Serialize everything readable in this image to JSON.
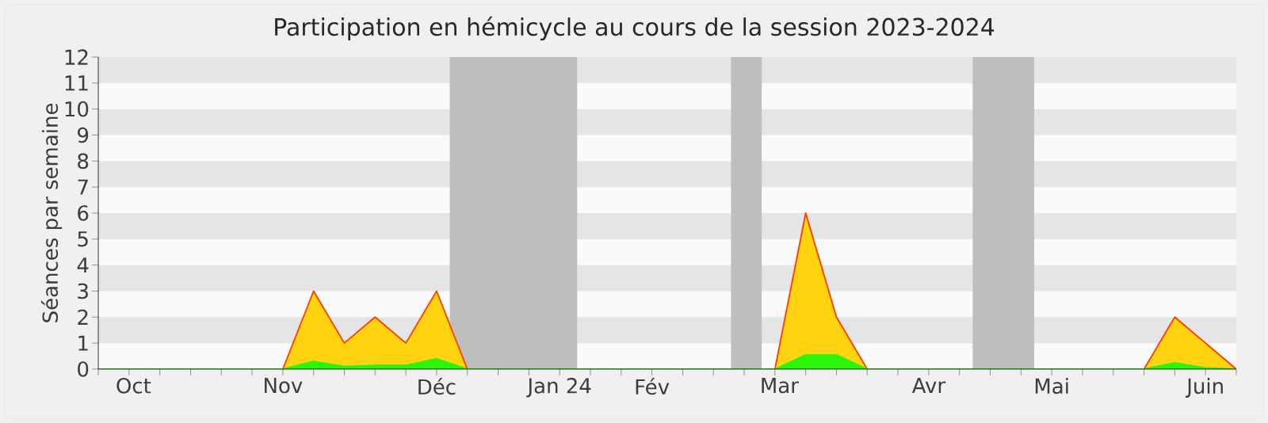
{
  "chart_data": {
    "type": "area",
    "title": "Participation en hémicycle au cours de la session 2023-2024",
    "ylabel": "Séances par semaine",
    "x": [
      "2023-09-28",
      "2023-10-05",
      "2023-10-12",
      "2023-10-19",
      "2023-10-26",
      "2023-11-02",
      "2023-11-09",
      "2023-11-16",
      "2023-11-23",
      "2023-11-30",
      "2023-12-07",
      "2023-12-14",
      "2023-12-21",
      "2023-12-28",
      "2024-01-04",
      "2024-01-11",
      "2024-01-18",
      "2024-01-25",
      "2024-02-01",
      "2024-02-08",
      "2024-02-15",
      "2024-02-22",
      "2024-02-29",
      "2024-03-07",
      "2024-03-14",
      "2024-03-21",
      "2024-03-28",
      "2024-04-04",
      "2024-04-11",
      "2024-04-18",
      "2024-04-25",
      "2024-05-02",
      "2024-05-09",
      "2024-05-16",
      "2024-05-23",
      "2024-05-30",
      "2024-06-06",
      "2024-06-13"
    ],
    "series": [
      {
        "color": "#ffd30f",
        "values": [
          0,
          0,
          0,
          0,
          0,
          0,
          0,
          3,
          1,
          2,
          1,
          3,
          0,
          0,
          0,
          0,
          0,
          0,
          0,
          0,
          0,
          0,
          0,
          6,
          2,
          0,
          0,
          0,
          0,
          0,
          0,
          0,
          0,
          0,
          0,
          2,
          1,
          0
        ]
      },
      {
        "color": "#2bf50a",
        "values": [
          0,
          0,
          0,
          0,
          0,
          0,
          0,
          0.3,
          0.1,
          0.15,
          0.15,
          0.4,
          0,
          0,
          0,
          0,
          0,
          0,
          0,
          0,
          0,
          0,
          0,
          0.55,
          0.55,
          0,
          0,
          0,
          0,
          0,
          0,
          0,
          0,
          0,
          0,
          0.25,
          0.05,
          0
        ]
      }
    ],
    "xlim": [
      "2023-09-28",
      "2024-06-13"
    ],
    "xticks": [
      {
        "value": "2023-10-06",
        "label": "Oct"
      },
      {
        "value": "2023-11-09",
        "label": "Nov"
      },
      {
        "value": "2023-12-14",
        "label": "Déc"
      },
      {
        "value": "2024-01-11",
        "label": "Jan 24"
      },
      {
        "value": "2024-02-01",
        "label": "Fév"
      },
      {
        "value": "2024-03-01",
        "label": "Mar"
      },
      {
        "value": "2024-04-04",
        "label": "Avr"
      },
      {
        "value": "2024-05-02",
        "label": "Mai"
      },
      {
        "value": "2024-06-06",
        "label": "Juin"
      }
    ],
    "ylim": [
      0,
      12
    ],
    "yticks": [
      0,
      1,
      2,
      3,
      4,
      5,
      6,
      7,
      8,
      9,
      10,
      11,
      12
    ],
    "bands": [
      {
        "axis": "x",
        "from": "2023-12-17",
        "to": "2024-01-15",
        "color": "#bebebe"
      },
      {
        "axis": "x",
        "from": "2024-02-19",
        "to": "2024-02-26",
        "color": "#bebebe"
      },
      {
        "axis": "x",
        "from": "2024-04-14",
        "to": "2024-04-28",
        "color": "#bebebe"
      }
    ]
  }
}
